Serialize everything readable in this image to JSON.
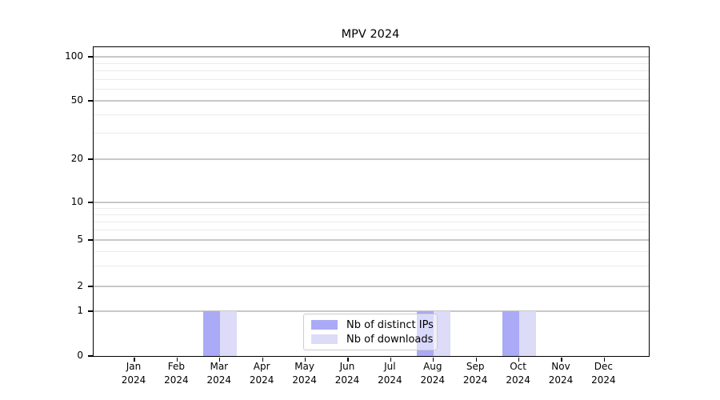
{
  "chart_data": {
    "type": "bar",
    "title": "MPV 2024",
    "categories": [
      "Jan 2024",
      "Feb 2024",
      "Mar 2024",
      "Apr 2024",
      "May 2024",
      "Jun 2024",
      "Jul 2024",
      "Aug 2024",
      "Sep 2024",
      "Oct 2024",
      "Nov 2024",
      "Dec 2024"
    ],
    "series": [
      {
        "name": "Nb of distinct IPs",
        "color": "#aaaaf6",
        "values": [
          0,
          0,
          1,
          0,
          0,
          0,
          0,
          1,
          0,
          1,
          0,
          0
        ]
      },
      {
        "name": "Nb of downloads",
        "color": "#dcdcf8",
        "values": [
          0,
          0,
          1,
          0,
          0,
          0,
          0,
          1,
          0,
          1,
          0,
          0
        ]
      }
    ],
    "xlabel": "",
    "ylabel": "",
    "yscale": "symlog",
    "ylim": [
      0,
      100
    ],
    "yticks": [
      0,
      1,
      2,
      5,
      10,
      20,
      50,
      100
    ],
    "minor_gridlines": [
      3,
      4,
      6,
      7,
      8,
      9,
      30,
      40,
      60,
      70,
      80,
      90
    ],
    "grid": true,
    "legend": {
      "position": "lower-center-inside",
      "frame": true,
      "items": [
        "Nb of distinct IPs",
        "Nb of downloads"
      ]
    }
  }
}
